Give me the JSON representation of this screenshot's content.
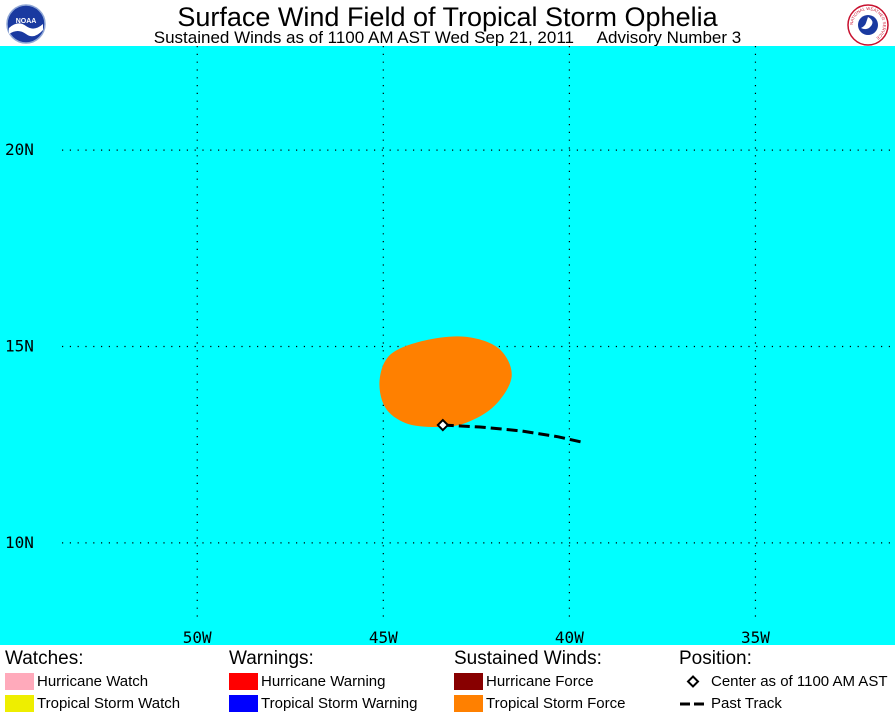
{
  "header": {
    "title": "Surface Wind Field of Tropical Storm Ophelia",
    "subtitle": "Sustained Winds as of 1100 AM AST Wed Sep 21, 2011     Advisory Number 3",
    "left_logo": {
      "icon": "noaa-logo",
      "text": "NOAA"
    },
    "right_logo": {
      "icon": "nws-logo",
      "text": "NATIONAL WEATHER SERVICE"
    }
  },
  "map": {
    "ocean_color": "#00ffff",
    "lat_range": [
      7.4,
      22.65
    ],
    "lon_range": [
      -55.3,
      -31.25
    ],
    "grid": "dotted",
    "lat_lines": [
      {
        "value": 20,
        "label": "20N"
      },
      {
        "value": 15,
        "label": "15N"
      },
      {
        "value": 10,
        "label": "10N"
      }
    ],
    "lon_lines": [
      {
        "value": -50,
        "label": "50W"
      },
      {
        "value": -45,
        "label": "45W"
      },
      {
        "value": -40,
        "label": "40W"
      },
      {
        "value": -35,
        "label": "35W"
      }
    ],
    "storm": {
      "name": "Ophelia",
      "center": {
        "lat": 13.0,
        "lon": -43.4
      },
      "past_track": [
        {
          "lat": 13.0,
          "lon": -43.4
        },
        {
          "lat": 12.95,
          "lon": -42.4
        },
        {
          "lat": 12.85,
          "lon": -41.3
        },
        {
          "lat": 12.7,
          "lon": -40.3
        },
        {
          "lat": 12.55,
          "lon": -39.6
        }
      ],
      "tropical_storm_force_field": [
        {
          "lat": 14.8,
          "lon": -44.8
        },
        {
          "lat": 15.15,
          "lon": -43.9
        },
        {
          "lat": 15.25,
          "lon": -42.8
        },
        {
          "lat": 14.95,
          "lon": -41.9
        },
        {
          "lat": 14.25,
          "lon": -41.55
        },
        {
          "lat": 13.5,
          "lon": -42.0
        },
        {
          "lat": 13.05,
          "lon": -42.8
        },
        {
          "lat": 12.95,
          "lon": -43.6
        },
        {
          "lat": 13.05,
          "lon": -44.4
        },
        {
          "lat": 13.45,
          "lon": -44.95
        },
        {
          "lat": 14.15,
          "lon": -45.1
        }
      ]
    }
  },
  "legend": {
    "watches": {
      "heading": "Watches:",
      "items": [
        {
          "label": "Hurricane Watch",
          "color": "#ffaabb"
        },
        {
          "label": "Tropical Storm Watch",
          "color": "#eeee00"
        }
      ]
    },
    "warnings": {
      "heading": "Warnings:",
      "items": [
        {
          "label": "Hurricane Warning",
          "color": "#ff0000"
        },
        {
          "label": "Tropical Storm Warning",
          "color": "#0000ff"
        }
      ]
    },
    "winds": {
      "heading": "Sustained Winds:",
      "items": [
        {
          "label": "Hurricane Force",
          "color": "#880000"
        },
        {
          "label": "Tropical Storm Force",
          "color": "#ff8000"
        }
      ]
    },
    "position": {
      "heading": "Position:",
      "items": [
        {
          "label": "Center as of 1100 AM AST",
          "icon": "center-diamond-icon"
        },
        {
          "label": "Past Track",
          "icon": "past-track-line-icon"
        }
      ]
    }
  }
}
